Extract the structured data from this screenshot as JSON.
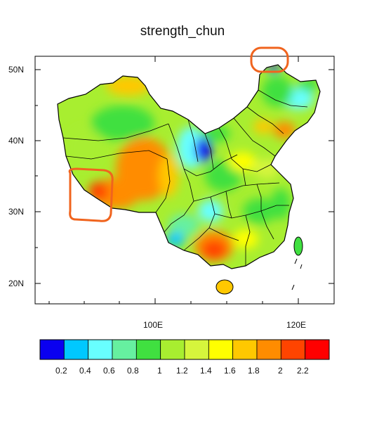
{
  "title": "strength_chun",
  "lat_ticks": [
    "50N",
    "40N",
    "30N",
    "20N"
  ],
  "lon_ticks": [
    "100E",
    "120E"
  ],
  "colorbar": {
    "labels": [
      "0.2",
      "0.4",
      "0.6",
      "0.8",
      "1",
      "1.2",
      "1.4",
      "1.6",
      "1.8",
      "2",
      "2.2"
    ],
    "colors": [
      "#0a00f0",
      "#00c8ff",
      "#68ffff",
      "#66f0a0",
      "#40e040",
      "#a8ee30",
      "#d6f53c",
      "#ffff00",
      "#ffc800",
      "#ff8c00",
      "#ff4400",
      "#ff0000"
    ]
  },
  "annotation_color": "#f0641e"
}
